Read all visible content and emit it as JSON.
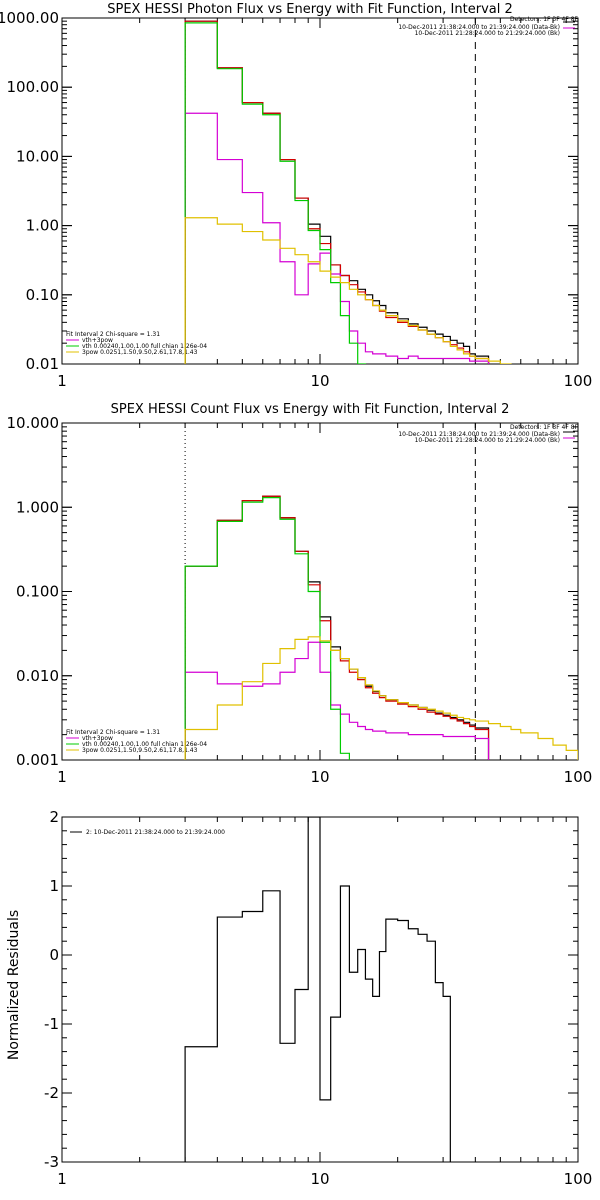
{
  "panels": [
    {
      "title": "SPEX HESSI Photon Flux vs Energy with Fit Function, Interval 2",
      "detectors": "Detectors: 1F 3F 4F 8F",
      "legend_right": [
        "10-Dec-2011 21:38:24.000 to 21:39:24.000 (Data-Bk)",
        "10-Dec-2011 21:28:24.000 to 21:29:24.000 (Bk)"
      ],
      "fit_header": "Fit Interval 2   Chi-square = 1.31",
      "legend_left": [
        "vth+3pow",
        "vth 0.00240,1.00,1.00  full chian 1.26e-04",
        "3pow 0.0251,1.50,9.50,2.61,17.8,1.43"
      ],
      "ylabel": "",
      "legend": ""
    },
    {
      "title": "SPEX HESSI Count Flux vs Energy with Fit Function, Interval 2",
      "detectors": "Detectors: 1F 3F 4F 8F",
      "legend_right": [
        "10-Dec-2011 21:38:24.000 to 21:39:24.000 (Data-Bk)",
        "10-Dec-2011 21:28:24.000 to 21:29:24.000 (Bk)"
      ],
      "fit_header": "Fit Interval 2   Chi-square = 1.31",
      "legend_left": [
        "vth+3pow",
        "vth 0.00240,1.00,1.00  full chian 1.26e-04",
        "3pow 0.0251,1.50,9.50,2.61,17.8,1.43"
      ],
      "ylabel": "",
      "legend": ""
    },
    {
      "title": "",
      "detectors": "",
      "legend_right": [],
      "fit_header": "",
      "legend_left": [],
      "ylabel": "Normalized Residuals",
      "legend": "2: 10-Dec-2011 21:38:24.000 to 21:39:24.000"
    }
  ],
  "colors": {
    "data": "#000000",
    "background": "#d40000",
    "total": "#d400d4",
    "vth": "#00cc00",
    "pow": "#e0c000"
  },
  "chart_data": [
    {
      "type": "line",
      "title": "SPEX HESSI Photon Flux vs Energy with Fit Function, Interval 2",
      "xlabel": "",
      "ylabel": "",
      "xscale": "log",
      "yscale": "log",
      "xlim": [
        1,
        100
      ],
      "ylim": [
        0.01,
        1000
      ],
      "x_ticks": [
        1,
        10,
        100
      ],
      "x_tick_labels": [
        "1",
        "10",
        "100"
      ],
      "y_ticks": [
        0.01,
        0.1,
        1,
        10,
        100,
        1000
      ],
      "y_tick_labels": [
        "0.01",
        "0.10",
        "1.00",
        "10.00",
        "100.00",
        "1000.00"
      ],
      "vlines": [
        {
          "x": 3.0,
          "style": "dotted",
          "color": "#000000"
        },
        {
          "x": 40.0,
          "style": "dashed",
          "color": "#000000"
        }
      ],
      "bin_edges": [
        3,
        4,
        5,
        6,
        7,
        8,
        9,
        10,
        11,
        12,
        13,
        14,
        15,
        16,
        17,
        18,
        20,
        22,
        24,
        26,
        28,
        30,
        32,
        34,
        36,
        38,
        40,
        45,
        50,
        55,
        60
      ],
      "series": [
        {
          "name": "Data-Bk",
          "color": "#000000",
          "values": [
            900,
            190,
            60,
            42,
            9,
            2.5,
            1.05,
            0.7,
            0.27,
            0.19,
            0.16,
            0.12,
            0.1,
            0.082,
            0.07,
            0.055,
            0.045,
            0.038,
            0.034,
            0.03,
            0.027,
            0.025,
            0.022,
            0.02,
            0.018,
            0.014,
            0.013,
            null,
            null,
            null
          ]
        },
        {
          "name": "Bk",
          "color": "#d40000",
          "values": [
            900,
            190,
            60,
            42,
            9,
            2.5,
            0.9,
            0.55,
            0.27,
            0.19,
            0.14,
            0.11,
            0.085,
            0.07,
            0.058,
            0.047,
            0.04,
            0.035,
            0.031,
            0.027,
            0.024,
            0.021,
            0.019,
            0.017,
            0.015,
            0.013,
            0.012,
            null,
            null,
            null
          ]
        },
        {
          "name": "vth+3pow",
          "color": "#d400d4",
          "values": [
            42,
            9,
            3,
            1.1,
            0.3,
            0.1,
            0.28,
            0.4,
            0.2,
            0.08,
            0.03,
            0.02,
            0.015,
            0.014,
            0.014,
            0.013,
            0.012,
            0.013,
            0.012,
            0.012,
            0.012,
            0.012,
            0.012,
            0.012,
            0.012,
            0.011,
            0.011,
            null,
            null,
            null
          ]
        },
        {
          "name": "vth",
          "color": "#00cc00",
          "values": [
            850,
            185,
            57,
            40,
            8.5,
            2.3,
            0.85,
            0.45,
            0.15,
            0.05,
            0.02,
            0.01,
            null,
            null,
            null,
            null,
            null,
            null,
            null,
            null,
            null,
            null,
            null,
            null,
            null,
            null,
            null,
            null,
            null,
            null
          ]
        },
        {
          "name": "3pow",
          "color": "#e0c000",
          "values": [
            1.3,
            1.05,
            0.82,
            0.62,
            0.47,
            0.38,
            0.3,
            0.22,
            0.18,
            0.15,
            0.12,
            0.1,
            0.085,
            0.07,
            0.06,
            0.05,
            0.042,
            0.036,
            0.031,
            0.027,
            0.024,
            0.021,
            0.018,
            0.016,
            0.014,
            0.013,
            0.012,
            0.011,
            0.01,
            null
          ]
        }
      ]
    },
    {
      "type": "line",
      "title": "SPEX HESSI Count Flux vs Energy with Fit Function, Interval 2",
      "xlabel": "",
      "ylabel": "",
      "xscale": "log",
      "yscale": "log",
      "xlim": [
        1,
        100
      ],
      "ylim": [
        0.001,
        10
      ],
      "x_ticks": [
        1,
        10,
        100
      ],
      "x_tick_labels": [
        "1",
        "10",
        "100"
      ],
      "y_ticks": [
        0.001,
        0.01,
        0.1,
        1,
        10
      ],
      "y_tick_labels": [
        "0.001",
        "0.010",
        "0.100",
        "1.000",
        "10.000"
      ],
      "vlines": [
        {
          "x": 3.0,
          "style": "dotted",
          "color": "#000000"
        },
        {
          "x": 40.0,
          "style": "dashed",
          "color": "#000000"
        }
      ],
      "bin_edges": [
        3,
        4,
        5,
        6,
        7,
        8,
        9,
        10,
        11,
        12,
        13,
        14,
        15,
        16,
        17,
        18,
        20,
        22,
        24,
        26,
        28,
        30,
        32,
        34,
        36,
        38,
        40,
        45,
        50,
        55,
        60,
        70,
        80,
        90,
        100
      ],
      "series": [
        {
          "name": "Data-Bk",
          "color": "#000000",
          "values": [
            0.2,
            0.7,
            1.2,
            1.35,
            0.75,
            0.3,
            0.13,
            0.05,
            0.022,
            0.016,
            0.012,
            0.0095,
            0.0075,
            0.0065,
            0.0058,
            0.0052,
            0.0048,
            0.0045,
            0.0042,
            0.0039,
            0.0036,
            0.0034,
            0.0032,
            0.003,
            0.0028,
            0.0026,
            0.0024,
            null,
            null,
            null,
            null,
            null,
            null,
            null
          ]
        },
        {
          "name": "Bk",
          "color": "#d40000",
          "values": [
            0.2,
            0.7,
            1.2,
            1.35,
            0.75,
            0.3,
            0.12,
            0.045,
            0.02,
            0.015,
            0.011,
            0.009,
            0.0072,
            0.0062,
            0.0055,
            0.005,
            0.0046,
            0.0043,
            0.004,
            0.0037,
            0.0035,
            0.0033,
            0.0031,
            0.0029,
            0.0027,
            0.0025,
            0.0023,
            null,
            null,
            null,
            null,
            null,
            null,
            null
          ]
        },
        {
          "name": "vth+3pow",
          "color": "#d400d4",
          "values": [
            0.011,
            0.008,
            0.0075,
            0.008,
            0.011,
            0.016,
            0.025,
            0.011,
            0.0045,
            0.0035,
            0.0028,
            0.0025,
            0.0023,
            0.0022,
            0.0022,
            0.0021,
            0.0021,
            0.002,
            0.002,
            0.002,
            0.002,
            0.0019,
            0.0019,
            0.0019,
            0.0019,
            0.0019,
            0.0018,
            null,
            null,
            null,
            null,
            null,
            null,
            null
          ]
        },
        {
          "name": "vth",
          "color": "#00cc00",
          "values": [
            0.2,
            0.68,
            1.15,
            1.3,
            0.72,
            0.28,
            0.1,
            0.025,
            0.004,
            0.0012,
            null,
            null,
            null,
            null,
            null,
            null,
            null,
            null,
            null,
            null,
            null,
            null,
            null,
            null,
            null,
            null,
            null,
            null,
            null,
            null,
            null,
            null,
            null,
            null
          ]
        },
        {
          "name": "3pow",
          "color": "#e0c000",
          "values": [
            0.0023,
            0.0045,
            0.0085,
            0.014,
            0.021,
            0.027,
            0.029,
            0.026,
            0.02,
            0.016,
            0.012,
            0.0095,
            0.0078,
            0.0066,
            0.0058,
            0.0052,
            0.0048,
            0.0045,
            0.0042,
            0.004,
            0.0038,
            0.0036,
            0.0034,
            0.0032,
            0.0031,
            0.003,
            0.0029,
            0.0027,
            0.0025,
            0.0023,
            0.0021,
            0.0018,
            0.0015,
            0.0013
          ]
        }
      ]
    },
    {
      "type": "line",
      "title": "",
      "xlabel": "",
      "ylabel": "Normalized Residuals",
      "xscale": "log",
      "yscale": "linear",
      "xlim": [
        1,
        100
      ],
      "ylim": [
        -3,
        2
      ],
      "x_ticks": [
        1,
        10,
        100
      ],
      "x_tick_labels": [
        "1",
        "10",
        "100"
      ],
      "y_ticks": [
        -3,
        -2,
        -1,
        0,
        1,
        2
      ],
      "y_tick_labels": [
        "-3",
        "-2",
        "-1",
        "0",
        "1",
        "2"
      ],
      "bin_edges": [
        3,
        4,
        5,
        6,
        7,
        8,
        9,
        10,
        11,
        12,
        13,
        14,
        15,
        16,
        17,
        18,
        20,
        22,
        24,
        26,
        28,
        30,
        32,
        34,
        36,
        38,
        40
      ],
      "series": [
        {
          "name": "2: 10-Dec-2011 21:38:24.000 to 21:39:24.000",
          "color": "#000000",
          "values": [
            -1.33,
            0.55,
            0.63,
            0.93,
            -1.28,
            -0.5,
            2.0,
            -2.1,
            -0.9,
            1.0,
            -0.25,
            0.08,
            -0.35,
            -0.6,
            0.05,
            0.52,
            0.5,
            0.38,
            0.3,
            0.2,
            -0.4,
            -0.6,
            null,
            null,
            null,
            null
          ]
        }
      ]
    }
  ]
}
